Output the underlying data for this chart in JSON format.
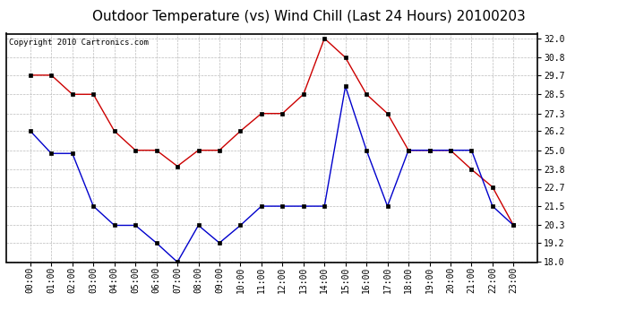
{
  "title": "Outdoor Temperature (vs) Wind Chill (Last 24 Hours) 20100203",
  "copyright": "Copyright 2010 Cartronics.com",
  "x_labels": [
    "00:00",
    "01:00",
    "02:00",
    "03:00",
    "04:00",
    "05:00",
    "06:00",
    "07:00",
    "08:00",
    "09:00",
    "10:00",
    "11:00",
    "12:00",
    "13:00",
    "14:00",
    "15:00",
    "16:00",
    "17:00",
    "18:00",
    "19:00",
    "20:00",
    "21:00",
    "22:00",
    "23:00"
  ],
  "temp_red": [
    29.7,
    29.7,
    28.5,
    28.5,
    26.2,
    25.0,
    25.0,
    24.0,
    25.0,
    25.0,
    26.2,
    27.3,
    27.3,
    28.5,
    32.0,
    30.8,
    28.5,
    27.3,
    25.0,
    25.0,
    25.0,
    23.8,
    22.7,
    20.3
  ],
  "wind_chill_blue": [
    26.2,
    24.8,
    24.8,
    21.5,
    20.3,
    20.3,
    19.2,
    18.0,
    20.3,
    19.2,
    20.3,
    21.5,
    21.5,
    21.5,
    21.5,
    29.0,
    25.0,
    21.5,
    25.0,
    25.0,
    25.0,
    25.0,
    21.5,
    20.3
  ],
  "ylim_min": 18.0,
  "ylim_max": 32.3,
  "yticks": [
    18.0,
    19.2,
    20.3,
    21.5,
    22.7,
    23.8,
    25.0,
    26.2,
    27.3,
    28.5,
    29.7,
    30.8,
    32.0
  ],
  "red_color": "#cc0000",
  "blue_color": "#0000cc",
  "bg_color": "#ffffff",
  "grid_color": "#bbbbbb",
  "title_fontsize": 11,
  "copyright_fontsize": 6.5,
  "tick_fontsize": 7
}
